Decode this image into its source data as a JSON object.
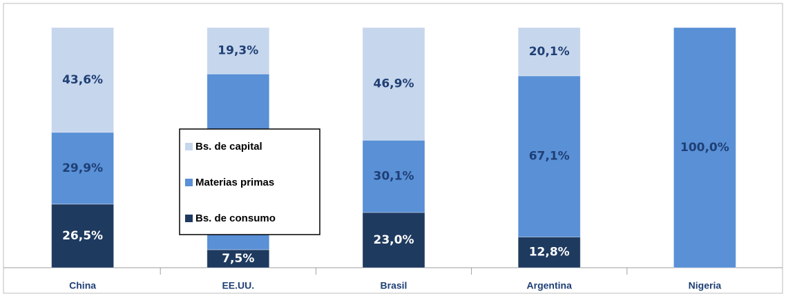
{
  "chart_data": {
    "type": "stacked_bar",
    "categories": [
      "China",
      "EE.UU.",
      "Brasil",
      "Argentina",
      "Nigeria"
    ],
    "series": [
      {
        "name": "Bs. de consumo",
        "color": "#1f3a5f",
        "label_color": "#ffffff",
        "values": [
          26.5,
          7.5,
          23.0,
          12.8,
          0
        ],
        "value_labels": [
          "26,5%",
          "7,5%",
          "23,0%",
          "12,8%",
          null
        ]
      },
      {
        "name": "Materias primas",
        "color": "#5990d6",
        "label_color": "#1f3f75",
        "values": [
          29.9,
          73.2,
          30.1,
          67.1,
          100
        ],
        "value_labels": [
          "29,9%",
          "73,2%",
          "30,1%",
          "67,1%",
          "100,0%"
        ]
      },
      {
        "name": "Bs. de capital",
        "color": "#c6d6ec",
        "label_color": "#1f3f75",
        "values": [
          43.6,
          19.3,
          46.9,
          20.1,
          0
        ],
        "value_labels": [
          "43,6%",
          "19,3%",
          "46,9%",
          "20,1%",
          null
        ]
      }
    ]
  }
}
